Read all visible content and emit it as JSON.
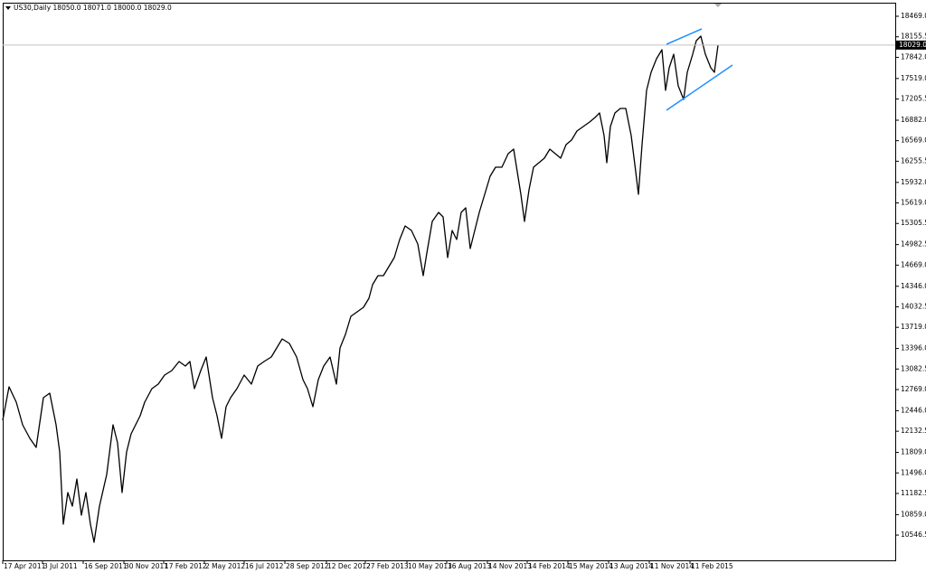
{
  "chart_data": {
    "type": "line",
    "title": "US30,Daily  18050.0 18071.0 18000.0 18029.0",
    "current_price": {
      "value": 18029,
      "label": "18029.0"
    },
    "xlim": [
      0,
      987
    ],
    "ylim": [
      10161,
      18676
    ],
    "xticks": [
      {
        "value": 0,
        "label": "17 Apr 2011"
      },
      {
        "value": 44,
        "label": "3 Jul 2011"
      },
      {
        "value": 89,
        "label": "16 Sep 2011"
      },
      {
        "value": 134,
        "label": "30 Nov 2011"
      },
      {
        "value": 178,
        "label": "17 Feb 2012"
      },
      {
        "value": 223,
        "label": "2 May 2012"
      },
      {
        "value": 267,
        "label": "16 Jul 2012"
      },
      {
        "value": 312,
        "label": "28 Sep 2012"
      },
      {
        "value": 358,
        "label": "12 Dec 2012"
      },
      {
        "value": 401,
        "label": "27 Feb 2013"
      },
      {
        "value": 447,
        "label": "10 May 2013"
      },
      {
        "value": 491,
        "label": "16 Aug 2013"
      },
      {
        "value": 536,
        "label": "14 Nov 2013"
      },
      {
        "value": 580,
        "label": "14 Feb 2014"
      },
      {
        "value": 625,
        "label": "15 May 2014"
      },
      {
        "value": 670,
        "label": "13 Aug 2014"
      },
      {
        "value": 715,
        "label": "11 Nov 2014"
      },
      {
        "value": 760,
        "label": "11 Feb 2015"
      }
    ],
    "yticks": [
      {
        "value": 18469,
        "label": "18469.0"
      },
      {
        "value": 18155.5,
        "label": "18155.5"
      },
      {
        "value": 17842,
        "label": "17842.0"
      },
      {
        "value": 17519,
        "label": "17519.0"
      },
      {
        "value": 17205.5,
        "label": "17205.5"
      },
      {
        "value": 16882,
        "label": "16882.0"
      },
      {
        "value": 16569,
        "label": "16569.0"
      },
      {
        "value": 16255.5,
        "label": "16255.5"
      },
      {
        "value": 15932,
        "label": "15932.0"
      },
      {
        "value": 15619,
        "label": "15619.0"
      },
      {
        "value": 15305.5,
        "label": "15305.5"
      },
      {
        "value": 14982.5,
        "label": "14982.5"
      },
      {
        "value": 14669,
        "label": "14669.0"
      },
      {
        "value": 14346,
        "label": "14346.0"
      },
      {
        "value": 14032.5,
        "label": "14032.5"
      },
      {
        "value": 13719,
        "label": "13719.0"
      },
      {
        "value": 13396,
        "label": "13396.0"
      },
      {
        "value": 13082.5,
        "label": "13082.5"
      },
      {
        "value": 12769,
        "label": "12769.0"
      },
      {
        "value": 12446,
        "label": "12446.0"
      },
      {
        "value": 12132.5,
        "label": "12132.5"
      },
      {
        "value": 11809,
        "label": "11809.0"
      },
      {
        "value": 11496,
        "label": "11496.0"
      },
      {
        "value": 11182.5,
        "label": "11182.5"
      },
      {
        "value": 10859,
        "label": "10859.0"
      },
      {
        "value": 10546.5,
        "label": "10546.5"
      }
    ],
    "series": [
      {
        "color": "#000000",
        "x": [
          0,
          7,
          15,
          22,
          30,
          37,
          45,
          52,
          59,
          63,
          67,
          72,
          77,
          82,
          87,
          92,
          97,
          101,
          107,
          115,
          122,
          127,
          132,
          137,
          142,
          147,
          152,
          157,
          165,
          172,
          179,
          187,
          195,
          202,
          207,
          212,
          219,
          225,
          232,
          237,
          242,
          247,
          252,
          259,
          267,
          275,
          282,
          289,
          297,
          303,
          309,
          317,
          325,
          332,
          337,
          343,
          349,
          355,
          362,
          369,
          373,
          379,
          385,
          392,
          399,
          405,
          409,
          415,
          421,
          427,
          433,
          439,
          445,
          452,
          459,
          465,
          469,
          475,
          482,
          487,
          492,
          497,
          502,
          507,
          512,
          517,
          522,
          527,
          533,
          539,
          545,
          552,
          559,
          565,
          569,
          573,
          577,
          582,
          587,
          593,
          599,
          605,
          611,
          617,
          623,
          629,
          635,
          642,
          649,
          655,
          660,
          665,
          668,
          672,
          677,
          683,
          689,
          695,
          700,
          703,
          707,
          712,
          717,
          723,
          729,
          733,
          737,
          742,
          747,
          753,
          757,
          763,
          767,
          772,
          777,
          783,
          787,
          791
        ],
        "values": [
          12300,
          12811,
          12576,
          12231,
          12024,
          11886,
          12645,
          12714,
          12231,
          11817,
          10713,
          11196,
          10989,
          11403,
          10851,
          11196,
          10713,
          10437,
          10989,
          11472,
          12231,
          11955,
          11196,
          11817,
          12093,
          12231,
          12369,
          12576,
          12783,
          12852,
          12990,
          13059,
          13197,
          13128,
          13197,
          12783,
          13059,
          13266,
          12645,
          12369,
          12024,
          12507,
          12645,
          12783,
          12990,
          12852,
          13128,
          13197,
          13266,
          13404,
          13542,
          13473,
          13266,
          12921,
          12783,
          12507,
          12921,
          13128,
          13266,
          12852,
          13404,
          13611,
          13887,
          13956,
          14025,
          14163,
          14370,
          14508,
          14508,
          14646,
          14784,
          15060,
          15267,
          15198,
          14991,
          14508,
          14853,
          15336,
          15474,
          15405,
          14784,
          15198,
          15060,
          15474,
          15543,
          14922,
          15198,
          15474,
          15750,
          16026,
          16164,
          16164,
          16371,
          16440,
          16095,
          15750,
          15336,
          15819,
          16164,
          16233,
          16302,
          16440,
          16371,
          16302,
          16509,
          16578,
          16716,
          16785,
          16854,
          16923,
          16992,
          16647,
          16233,
          16785,
          16992,
          17061,
          17061,
          16647,
          16095,
          15750,
          16509,
          17337,
          17613,
          17820,
          17958,
          17337,
          17682,
          17889,
          17406,
          17199,
          17613,
          17889,
          18096,
          18165,
          17889,
          17682,
          17613,
          18029
        ]
      }
    ]
  }
}
